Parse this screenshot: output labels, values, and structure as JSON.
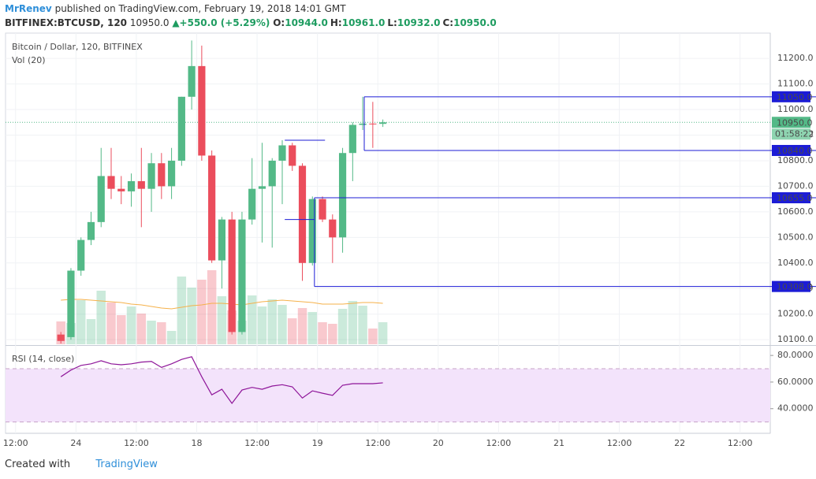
{
  "header": {
    "author": "MrRenev",
    "published": "published on TradingView.com, February 19, 2018 14:01 GMT"
  },
  "chart_data": {
    "type": "candlestick",
    "symbol": "BITFINEX:BTCUSD, 120",
    "last": "10950.0",
    "change": "▲+550.0 (+5.29%)",
    "ohlc_labels": [
      {
        "key": "O:",
        "value": "10944.0"
      },
      {
        "key": "H:",
        "value": "10961.0"
      },
      {
        "key": "L:",
        "value": "10932.0"
      },
      {
        "key": "C:",
        "value": "10950.0"
      }
    ],
    "title": "Bitcoin / Dollar, 120, BITFINEX",
    "volume_label": "Vol (20)",
    "rsi_label": "RSI (14, close)",
    "x": [
      20,
      22,
      24,
      26,
      28,
      30,
      32,
      34,
      36,
      38,
      40,
      42,
      44,
      46,
      48,
      50,
      52,
      54,
      56,
      58,
      60,
      62,
      64,
      66,
      68,
      70,
      72,
      74,
      76,
      78,
      80,
      82,
      84
    ],
    "open": [
      10120,
      10110,
      10370,
      10490,
      10560,
      10740,
      10690,
      10680,
      10720,
      10690,
      10790,
      10700,
      10800,
      11050,
      11170,
      10820,
      10410,
      10570,
      10130,
      10570,
      10690,
      10700,
      10800,
      10860,
      10780,
      10400,
      10650,
      10570,
      10500,
      10830,
      10940,
      10945,
      10944
    ],
    "high": [
      10130,
      10380,
      10500,
      10600,
      10850,
      10850,
      10740,
      10750,
      10850,
      10830,
      10830,
      10850,
      11050,
      11270,
      11250,
      10840,
      10580,
      10600,
      10600,
      10810,
      10870,
      10810,
      10880,
      10870,
      10790,
      10660,
      10660,
      10590,
      10850,
      10950,
      11050,
      11030,
      10961
    ],
    "low": [
      10085,
      10100,
      10350,
      10470,
      10540,
      10650,
      10630,
      10620,
      10540,
      10600,
      10650,
      10650,
      10780,
      11000,
      10800,
      10400,
      10300,
      10120,
      10120,
      10550,
      10480,
      10460,
      10630,
      10760,
      10330,
      10390,
      10560,
      10400,
      10440,
      10720,
      10920,
      10850,
      10932
    ],
    "close": [
      10095,
      10370,
      10490,
      10560,
      10740,
      10690,
      10680,
      10720,
      10690,
      10790,
      10700,
      10800,
      11050,
      11170,
      10820,
      10410,
      10570,
      10130,
      10570,
      10690,
      10700,
      10800,
      10860,
      10780,
      10400,
      10650,
      10570,
      10500,
      10830,
      10940,
      10945,
      10944,
      10950
    ],
    "volume": [
      29,
      27,
      56,
      32,
      68,
      53,
      37,
      48,
      39,
      30,
      28,
      17,
      86,
      72,
      82,
      94,
      61,
      43,
      30,
      62,
      48,
      57,
      50,
      33,
      46,
      41,
      28,
      26,
      45,
      55,
      49,
      20,
      28
    ],
    "volume_ma": [
      56,
      57,
      57,
      56,
      55,
      54,
      53,
      51,
      50,
      48,
      46,
      45,
      47,
      49,
      50,
      52,
      52,
      51,
      50,
      52,
      54,
      55,
      56,
      55,
      54,
      53,
      51,
      51,
      51,
      52,
      53,
      53,
      52
    ],
    "rsi": [
      64,
      69,
      72.5,
      73.7,
      76,
      73.7,
      73,
      73.7,
      75,
      75.5,
      71,
      73.7,
      77,
      79,
      64,
      50.4,
      54.6,
      44,
      54,
      56,
      54.6,
      57,
      58,
      56.4,
      48,
      53.4,
      51.6,
      50,
      57.6,
      58.8,
      58.8,
      58.8,
      59.4
    ],
    "xlim": [
      10,
      162
    ],
    "xticks": [
      {
        "value": 12,
        "label": "12:00"
      },
      24,
      {
        "value": 36,
        "label": "12:00"
      },
      {
        "value": 48,
        "label": "18"
      },
      {
        "value": 60,
        "label": "12:00"
      },
      {
        "value": 72,
        "label": "19"
      },
      {
        "value": 84,
        "label": "12:00"
      },
      {
        "value": 96,
        "label": "20"
      },
      {
        "value": 108,
        "label": "12:00"
      },
      {
        "value": 120,
        "label": "21"
      },
      {
        "value": 132,
        "label": "12:00"
      },
      {
        "value": 144,
        "label": "22"
      },
      {
        "value": 156,
        "label": "12:00"
      }
    ],
    "ylim": [
      10082,
      11299
    ],
    "yticks": [
      {
        "value": 11200,
        "label": "11200.0"
      },
      {
        "value": 11100,
        "label": "11100.0"
      },
      {
        "value": 11000,
        "label": "11000.0"
      },
      {
        "value": 10900,
        "label": "10900.0"
      },
      {
        "value": 10800,
        "label": "10800.0"
      },
      {
        "value": 10700,
        "label": "10700.0"
      },
      {
        "value": 10600,
        "label": "10600.0"
      },
      {
        "value": 10500,
        "label": "10500.0"
      },
      {
        "value": 10400,
        "label": "10400.0"
      },
      {
        "value": 10300,
        "label": "10300.0"
      },
      {
        "value": 10200,
        "label": "10200.0"
      },
      {
        "value": 10100,
        "label": "10100.0"
      }
    ],
    "volume_lim": [
      0,
      395
    ],
    "rsi_ylim": [
      21.5,
      86.6
    ],
    "rsi_yticks": [
      {
        "value": 80,
        "label": "80.0000"
      },
      {
        "value": 60,
        "label": "60.0000"
      },
      {
        "value": 40,
        "label": "40.0000"
      }
    ],
    "rsi_bands": [
      70,
      30
    ],
    "levels": [
      {
        "value": 11050,
        "label": "11050.0",
        "from": 81.3
      },
      {
        "value": 10840,
        "label": "10840.0",
        "from": 81.3
      },
      {
        "value": 10655,
        "label": "10655.0",
        "from": 71.4
      },
      {
        "value": 10308,
        "label": "10308.0",
        "from": 71.4
      }
    ],
    "trend_lines": [
      {
        "x": [
          65.5,
          73.5
        ],
        "y": [
          10880,
          10880
        ]
      },
      {
        "x": [
          65.5,
          71.4
        ],
        "y": [
          10570,
          10570
        ]
      },
      {
        "x": [
          71.4,
          71.4
        ],
        "y": [
          10308,
          10655
        ]
      },
      {
        "x": [
          81.3,
          81.3
        ],
        "y": [
          10840,
          11050
        ]
      }
    ],
    "last_price": {
      "value": 10950,
      "label": "10950.0"
    },
    "countdown": "01:58:22",
    "colors": {
      "up": "#53b987",
      "down": "#eb4d5c",
      "level": "#1c1cd6",
      "rsi": "#8e1599",
      "volume_ma": "#f5b14a"
    }
  },
  "footer": {
    "created": "Created with",
    "brand": "TradingView"
  }
}
